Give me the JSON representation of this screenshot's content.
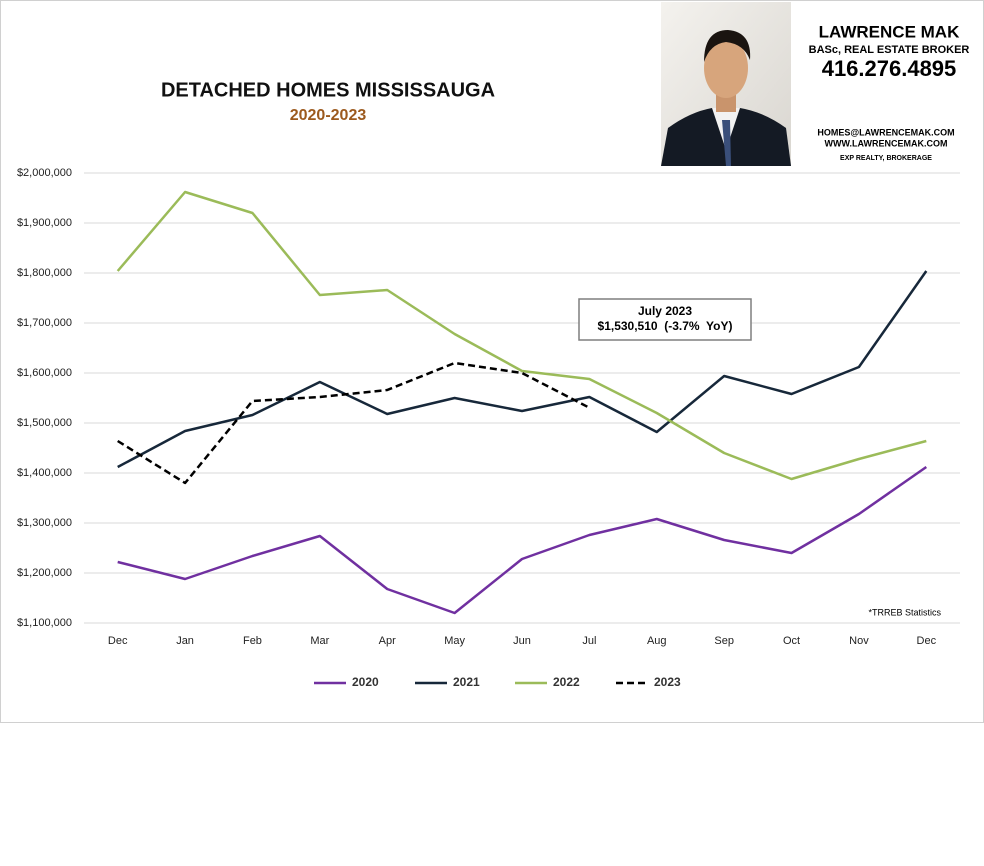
{
  "header": {
    "name": "LAWRENCE MAK",
    "credentials": "BASc, REAL ESTATE BROKER",
    "phone": "416.276.4895",
    "email": "HOMES@LAWRENCEMAK.COM",
    "website": "WWW.LAWRENCEMAK.COM",
    "brokerage": "EXP REALTY, BROKERAGE"
  },
  "chart_data": {
    "type": "line",
    "title": "DETACHED HOMES MISSISSAUGA",
    "subtitle": "2020-2023",
    "categories": [
      "Dec",
      "Jan",
      "Feb",
      "Mar",
      "Apr",
      "May",
      "Jun",
      "Jul",
      "Aug",
      "Sep",
      "Oct",
      "Nov",
      "Dec"
    ],
    "series": [
      {
        "name": "2020",
        "color": "#7030a0",
        "dashed": false,
        "values": [
          1222000,
          1188000,
          1234000,
          1274000,
          1168000,
          1120000,
          1228000,
          1276000,
          1308000,
          1266000,
          1240000,
          1318000,
          1412000
        ]
      },
      {
        "name": "2021",
        "color": "#17283a",
        "dashed": false,
        "values": [
          1412000,
          1484000,
          1516000,
          1582000,
          1518000,
          1550000,
          1524000,
          1552000,
          1482000,
          1594000,
          1558000,
          1612000,
          1804000
        ]
      },
      {
        "name": "2022",
        "color": "#9bbb59",
        "dashed": false,
        "values": [
          1804000,
          1962000,
          1920000,
          1756000,
          1766000,
          1678000,
          1604000,
          1588000,
          1520000,
          1440000,
          1388000,
          1428000,
          1464000
        ]
      },
      {
        "name": "2023",
        "color": "#000000",
        "dashed": true,
        "values": [
          1464000,
          1380000,
          1544000,
          1552000,
          1566000,
          1620000,
          1600000,
          1530510,
          null,
          null,
          null,
          null,
          null
        ]
      }
    ],
    "ylim": [
      1100000,
      2000000
    ],
    "yticks": [
      {
        "value": 1100000,
        "label": "$1,100,000"
      },
      {
        "value": 1200000,
        "label": "$1,200,000"
      },
      {
        "value": 1300000,
        "label": "$1,300,000"
      },
      {
        "value": 1400000,
        "label": "$1,400,000"
      },
      {
        "value": 1500000,
        "label": "$1,500,000"
      },
      {
        "value": 1600000,
        "label": "$1,600,000"
      },
      {
        "value": 1700000,
        "label": "$1,700,000"
      },
      {
        "value": 1800000,
        "label": "$1,800,000"
      },
      {
        "value": 1900000,
        "label": "$1,900,000"
      },
      {
        "value": 2000000,
        "label": "$2,000,000"
      }
    ],
    "grid": true,
    "legend": "bottom",
    "annotation": [
      "July 2023",
      "$1,530,510  (-3.7%  YoY)"
    ],
    "note": "*TRREB Statistics"
  }
}
